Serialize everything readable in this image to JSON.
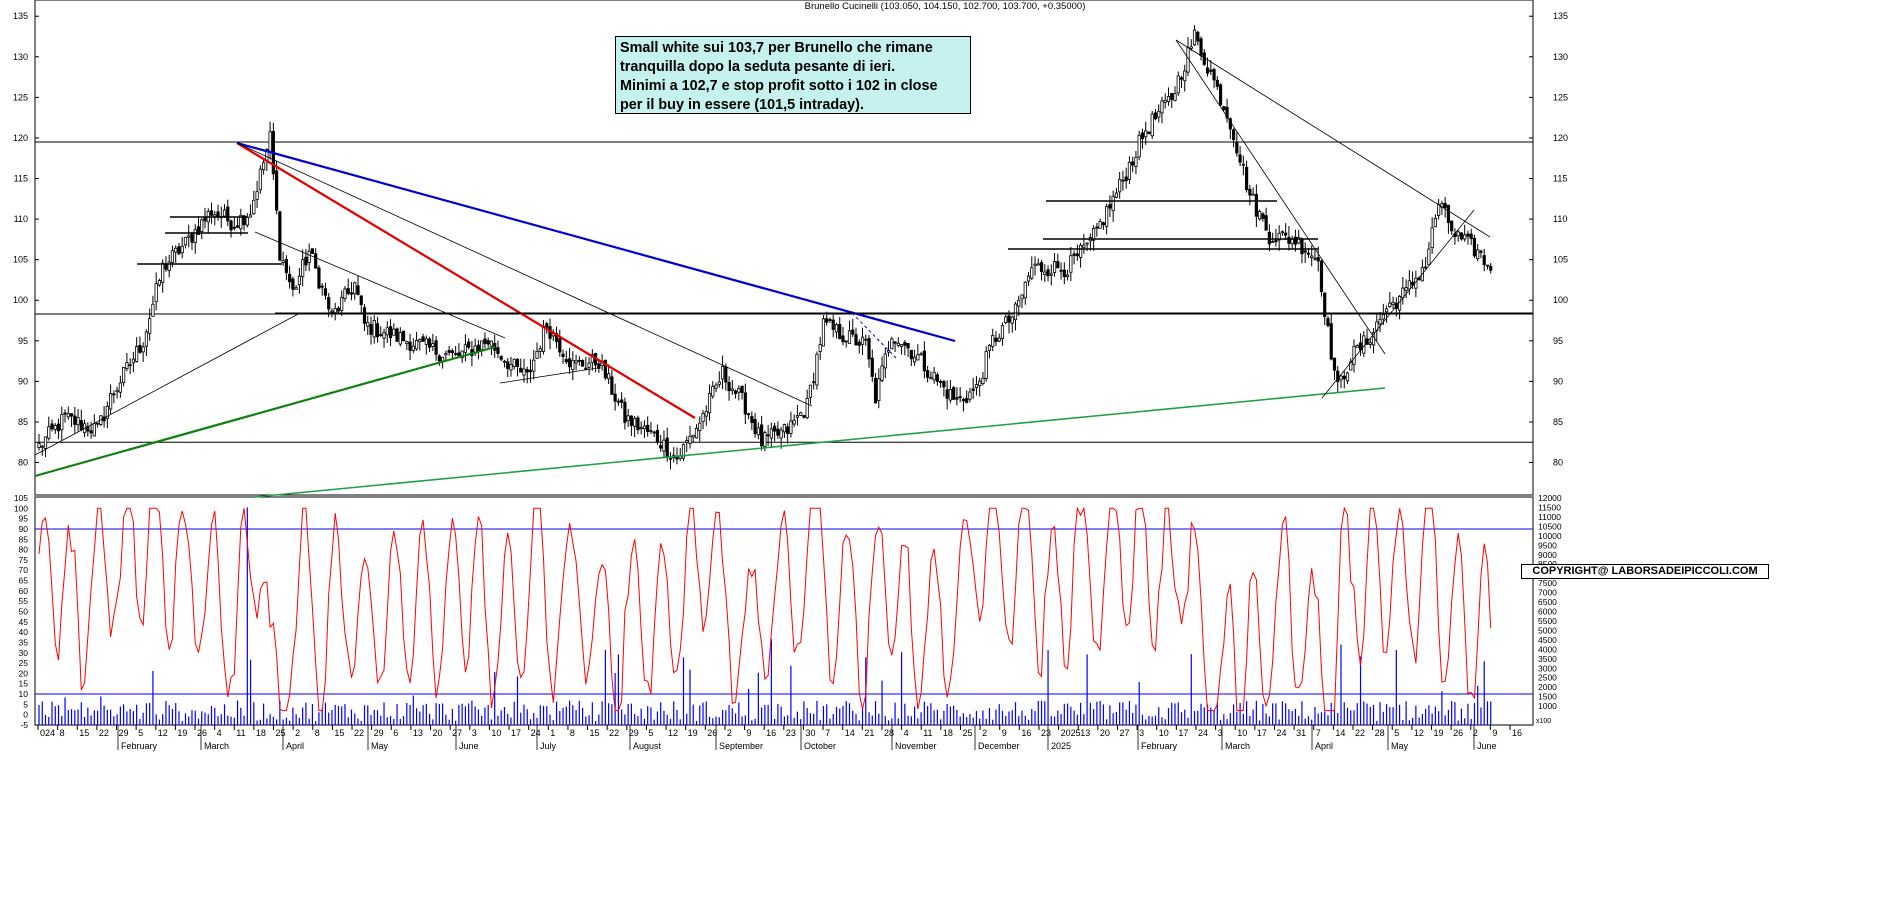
{
  "chart_title": "Brunello Cucinelli (103.050, 104.150, 102.700, 103.700, +0.35000)",
  "note_lines": [
    "Small white sui 103,7 per Brunello che rimane",
    "tranquilla dopo la seduta pesante di ieri.",
    "Minimi a 102,7 e stop profit sotto i 102 in close",
    "per il buy in essere (101,5 intraday)."
  ],
  "copyright": "COPYRIGHT@ LABORSADEIPICCOLI.COM",
  "colors": {
    "candle": "#000000",
    "trend_red": "#e00000",
    "trend_blue": "#0000d0",
    "trend_green_dark": "#108010",
    "trend_green_light": "#20a040",
    "oscillator": "#ff0000",
    "volume": "#0000ff",
    "note_bg": "#c5f2ee"
  },
  "chart_data": [
    {
      "type": "candlestick",
      "title": "Brunello Cucinelli (103.050, 104.150, 102.700, 103.700, +0.35000)",
      "ylim": [
        76,
        137
      ],
      "yticks": [
        80,
        85,
        90,
        95,
        100,
        105,
        110,
        115,
        120,
        125,
        130,
        135
      ],
      "horizontal_levels": [
        119.5,
        98.3,
        82.5
      ],
      "last_close": 103.7,
      "price_anchors": [
        {
          "bar": 0,
          "close": 82
        },
        {
          "bar": 8,
          "close": 85.5
        },
        {
          "bar": 18,
          "close": 84
        },
        {
          "bar": 22,
          "close": 88
        },
        {
          "bar": 32,
          "close": 95
        },
        {
          "bar": 38,
          "close": 104
        },
        {
          "bar": 45,
          "close": 107
        },
        {
          "bar": 53,
          "close": 111
        },
        {
          "bar": 60,
          "close": 109.5
        },
        {
          "bar": 65,
          "close": 111
        },
        {
          "bar": 69,
          "close": 117
        },
        {
          "bar": 71,
          "close": 120
        },
        {
          "bar": 74,
          "close": 106
        },
        {
          "bar": 78,
          "close": 101
        },
        {
          "bar": 83,
          "close": 106
        },
        {
          "bar": 90,
          "close": 98
        },
        {
          "bar": 97,
          "close": 102
        },
        {
          "bar": 100,
          "close": 97
        },
        {
          "bar": 110,
          "close": 95.5
        },
        {
          "bar": 120,
          "close": 94
        },
        {
          "bar": 128,
          "close": 93
        },
        {
          "bar": 138,
          "close": 95
        },
        {
          "bar": 145,
          "close": 92
        },
        {
          "bar": 150,
          "close": 90.5
        },
        {
          "bar": 156,
          "close": 97
        },
        {
          "bar": 164,
          "close": 92
        },
        {
          "bar": 172,
          "close": 92.5
        },
        {
          "bar": 180,
          "close": 85.5
        },
        {
          "bar": 190,
          "close": 83
        },
        {
          "bar": 196,
          "close": 80.5
        },
        {
          "bar": 203,
          "close": 85
        },
        {
          "bar": 210,
          "close": 91
        },
        {
          "bar": 217,
          "close": 87
        },
        {
          "bar": 222,
          "close": 82.5
        },
        {
          "bar": 230,
          "close": 84
        },
        {
          "bar": 236,
          "close": 87
        },
        {
          "bar": 241,
          "close": 97
        },
        {
          "bar": 248,
          "close": 95.5
        },
        {
          "bar": 254,
          "close": 94.5
        },
        {
          "bar": 257,
          "close": 88
        },
        {
          "bar": 262,
          "close": 96
        },
        {
          "bar": 270,
          "close": 93
        },
        {
          "bar": 276,
          "close": 90
        },
        {
          "bar": 282,
          "close": 87.5
        },
        {
          "bar": 288,
          "close": 89
        },
        {
          "bar": 293,
          "close": 95
        },
        {
          "bar": 300,
          "close": 98.5
        },
        {
          "bar": 305,
          "close": 104
        },
        {
          "bar": 316,
          "close": 104
        },
        {
          "bar": 323,
          "close": 107
        },
        {
          "bar": 332,
          "close": 114
        },
        {
          "bar": 340,
          "close": 121
        },
        {
          "bar": 348,
          "close": 125
        },
        {
          "bar": 355,
          "close": 132.5
        },
        {
          "bar": 360,
          "close": 128
        },
        {
          "bar": 366,
          "close": 122
        },
        {
          "bar": 372,
          "close": 113
        },
        {
          "bar": 378,
          "close": 108
        },
        {
          "bar": 386,
          "close": 107.5
        },
        {
          "bar": 393,
          "close": 105
        },
        {
          "bar": 396,
          "close": 96
        },
        {
          "bar": 399,
          "close": 89
        },
        {
          "bar": 403,
          "close": 93
        },
        {
          "bar": 408,
          "close": 95
        },
        {
          "bar": 414,
          "close": 99
        },
        {
          "bar": 420,
          "close": 101
        },
        {
          "bar": 426,
          "close": 104.5
        },
        {
          "bar": 430,
          "close": 112
        },
        {
          "bar": 435,
          "close": 108
        },
        {
          "bar": 442,
          "close": 106
        },
        {
          "bar": 446,
          "close": 103.7
        }
      ]
    },
    {
      "type": "line",
      "title": "",
      "ylim": [
        -5,
        105
      ],
      "yticks": [
        -5,
        0,
        5,
        10,
        15,
        20,
        25,
        30,
        35,
        40,
        45,
        50,
        55,
        60,
        65,
        70,
        75,
        80,
        85,
        90,
        95,
        100,
        105
      ],
      "horizontal_levels": [
        90,
        10
      ],
      "series": [
        {
          "name": "",
          "color": "#ff0000"
        }
      ]
    },
    {
      "type": "bar",
      "title": "",
      "ylim": [
        0,
        12000
      ],
      "yticks": [
        1000,
        1500,
        2000,
        2500,
        3000,
        3500,
        4000,
        4500,
        5000,
        5500,
        6000,
        6500,
        7000,
        7500,
        8000,
        8500,
        9000,
        9500,
        10000,
        10500,
        11000,
        11500,
        12000
      ],
      "series": [
        {
          "name": "",
          "color": "#0000ff"
        }
      ]
    }
  ],
  "x_axis": {
    "ticks": [
      "024",
      "8",
      "15",
      "22",
      "29",
      "5",
      "12",
      "19",
      "26",
      "4",
      "11",
      "18",
      "25",
      "2",
      "8",
      "15",
      "22",
      "29",
      "6",
      "13",
      "20",
      "27",
      "3",
      "10",
      "17",
      "24",
      "1",
      "8",
      "15",
      "22",
      "29",
      "5",
      "12",
      "19",
      "26",
      "2",
      "9",
      "16",
      "23",
      "30",
      "7",
      "14",
      "21",
      "28",
      "4",
      "11",
      "18",
      "25",
      "2",
      "9",
      "16",
      "23",
      "2025",
      "13",
      "20",
      "27",
      "3",
      "10",
      "17",
      "24",
      "3",
      "10",
      "17",
      "24",
      "31",
      "7",
      "14",
      "22",
      "28",
      "5",
      "12",
      "19",
      "26",
      "2",
      "9",
      "16"
    ],
    "months": [
      "February",
      "March",
      "April",
      "May",
      "June",
      "July",
      "August",
      "September",
      "October",
      "November",
      "December",
      "2025",
      "February",
      "March",
      "April",
      "May",
      "June"
    ]
  },
  "scale_label": "x100"
}
